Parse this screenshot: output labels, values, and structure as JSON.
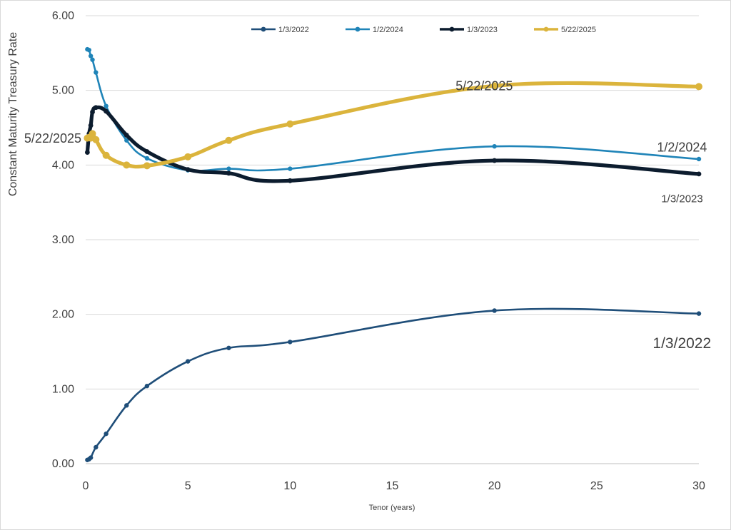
{
  "chart_data": {
    "type": "line",
    "xlabel": "Tenor (years)",
    "ylabel": "Constant Maturity Treasury Rate",
    "xlim": [
      0,
      30
    ],
    "ylim": [
      0,
      6
    ],
    "x_ticks": [
      "0",
      "5",
      "10",
      "15",
      "20",
      "25",
      "30"
    ],
    "y_ticks": [
      "0.00",
      "1.00",
      "2.00",
      "3.00",
      "4.00",
      "5.00",
      "6.00"
    ],
    "grid": "horizontal",
    "legend_position": "top",
    "series": [
      {
        "name": "1/3/2022",
        "color": "#1f4e79",
        "points": [
          [
            0.083,
            0.05
          ],
          [
            0.167,
            0.06
          ],
          [
            0.25,
            0.08
          ],
          [
            0.5,
            0.22
          ],
          [
            1,
            0.4
          ],
          [
            2,
            0.78
          ],
          [
            3,
            1.04
          ],
          [
            5,
            1.37
          ],
          [
            7,
            1.55
          ],
          [
            10,
            1.63
          ],
          [
            20,
            2.05
          ],
          [
            30,
            2.01
          ]
        ]
      },
      {
        "name": "1/2/2024",
        "color": "#1f84b8",
        "points": [
          [
            0.083,
            5.55
          ],
          [
            0.167,
            5.54
          ],
          [
            0.25,
            5.46
          ],
          [
            0.333,
            5.41
          ],
          [
            0.5,
            5.24
          ],
          [
            1,
            4.79
          ],
          [
            2,
            4.33
          ],
          [
            3,
            4.09
          ],
          [
            5,
            3.93
          ],
          [
            7,
            3.95
          ],
          [
            10,
            3.95
          ],
          [
            20,
            4.25
          ],
          [
            30,
            4.08
          ]
        ]
      },
      {
        "name": "1/3/2023",
        "color": "#0c1c2e",
        "points": [
          [
            0.083,
            4.17
          ],
          [
            0.167,
            4.42
          ],
          [
            0.25,
            4.53
          ],
          [
            0.333,
            4.71
          ],
          [
            0.5,
            4.77
          ],
          [
            1,
            4.72
          ],
          [
            2,
            4.4
          ],
          [
            3,
            4.18
          ],
          [
            5,
            3.94
          ],
          [
            7,
            3.89
          ],
          [
            10,
            3.79
          ],
          [
            20,
            4.06
          ],
          [
            30,
            3.88
          ]
        ]
      },
      {
        "name": "5/22/2025",
        "color": "#dbb43c",
        "points": [
          [
            0.083,
            4.36
          ],
          [
            0.167,
            4.37
          ],
          [
            0.25,
            4.36
          ],
          [
            0.333,
            4.42
          ],
          [
            0.5,
            4.34
          ],
          [
            1,
            4.13
          ],
          [
            2,
            4.0
          ],
          [
            3,
            3.99
          ],
          [
            5,
            4.11
          ],
          [
            7,
            4.33
          ],
          [
            10,
            4.55
          ],
          [
            20,
            5.06
          ],
          [
            30,
            5.05
          ]
        ]
      }
    ],
    "annotations": [
      {
        "text": "5/22/2025",
        "series": "5/22/2025",
        "x": 0,
        "y": 4.36,
        "anchor": "end",
        "size": 18
      },
      {
        "text": "5/22/2025",
        "series": "5/22/2025",
        "x": 19.5,
        "y": 5.06,
        "anchor": "middle",
        "size": 18
      },
      {
        "text": "1/2/2024",
        "series": "1/2/2024",
        "x": 30.4,
        "y": 4.24,
        "anchor": "end",
        "size": 18
      },
      {
        "text": "1/3/2023",
        "series": "1/3/2023",
        "x": 30.2,
        "y": 3.55,
        "anchor": "end",
        "size": 15
      },
      {
        "text": "1/3/2022",
        "series": "1/3/2022",
        "x": 30.6,
        "y": 1.62,
        "anchor": "end",
        "size": 21
      }
    ]
  }
}
